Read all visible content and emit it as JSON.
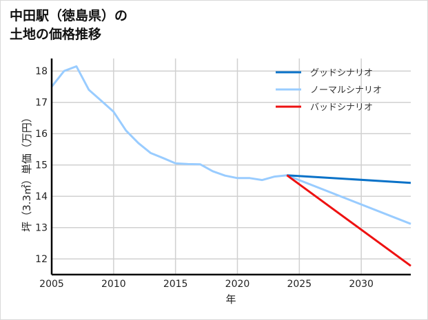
{
  "title_line1": "中田駅（徳島県）の",
  "title_line2": "土地の価格推移",
  "chart_data": {
    "type": "line",
    "title": "中田駅（徳島県）の土地の価格推移",
    "xlabel": "年",
    "ylabel": "坪（3.3㎡）単価（万円）",
    "xlim": [
      2005,
      2034
    ],
    "ylim": [
      11.5,
      18.4
    ],
    "xticks": [
      2005,
      2010,
      2015,
      2020,
      2025,
      2030
    ],
    "yticks": [
      12,
      13,
      14,
      15,
      16,
      17,
      18
    ],
    "grid": true,
    "legend_position": "upper right",
    "series": [
      {
        "name": "グッドシナリオ",
        "color": "#0a72c8",
        "x": [
          2024,
          2034
        ],
        "values": [
          14.67,
          14.43
        ]
      },
      {
        "name": "ノーマルシナリオ",
        "color": "#99ccff",
        "x": [
          2005,
          2006,
          2007,
          2008,
          2009,
          2010,
          2011,
          2012,
          2013,
          2014,
          2015,
          2016,
          2017,
          2018,
          2019,
          2020,
          2021,
          2022,
          2023,
          2024,
          2034
        ],
        "values": [
          17.5,
          18.0,
          18.15,
          17.4,
          17.05,
          16.7,
          16.1,
          15.7,
          15.38,
          15.22,
          15.05,
          15.03,
          15.02,
          14.8,
          14.66,
          14.58,
          14.58,
          14.52,
          14.63,
          14.67,
          13.12
        ]
      },
      {
        "name": "バッドシナリオ",
        "color": "#ee1111",
        "x": [
          2024,
          2034
        ],
        "values": [
          14.67,
          11.78
        ]
      }
    ]
  }
}
